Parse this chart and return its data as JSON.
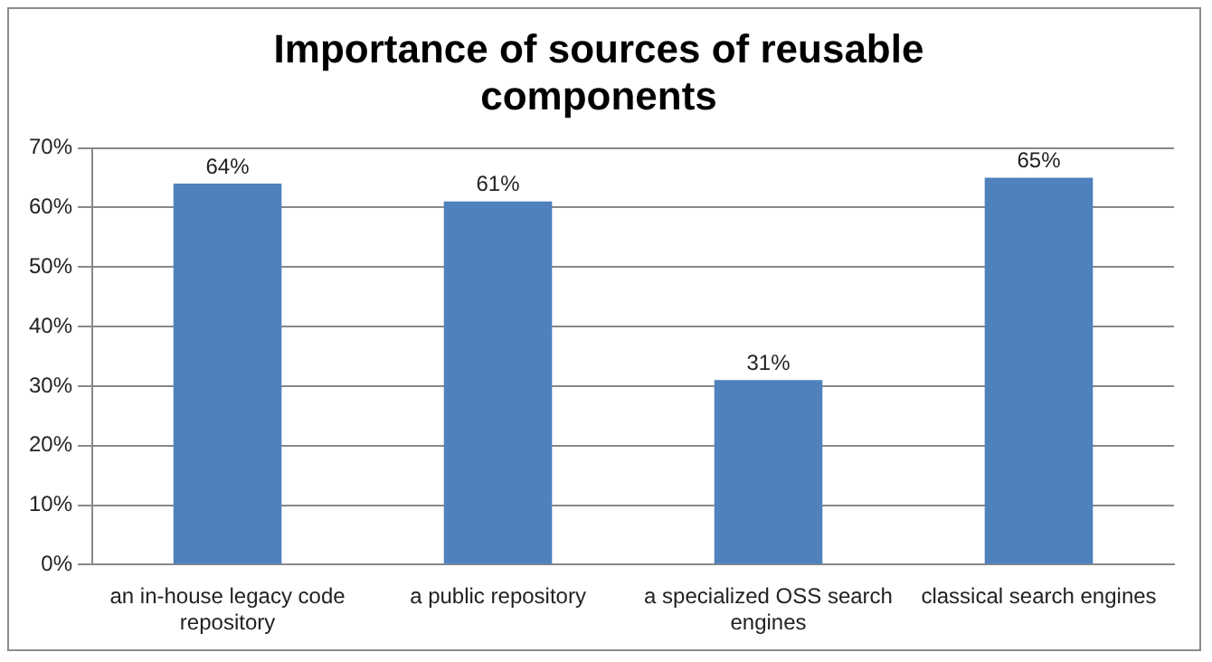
{
  "chart_data": {
    "type": "bar",
    "title": "Importance of sources of reusable components",
    "categories": [
      "an in-house legacy code repository",
      "a public repository",
      "a specialized OSS search engines",
      "classical search engines"
    ],
    "values": [
      64,
      61,
      31,
      65
    ],
    "color": "#4f81bd",
    "value_labels": [
      "64%",
      "61%",
      "31%",
      "65%"
    ],
    "ylim": [
      0,
      70
    ],
    "yticks": [
      {
        "value": 0,
        "label": "0%"
      },
      {
        "value": 10,
        "label": "10%"
      },
      {
        "value": 20,
        "label": "20%"
      },
      {
        "value": 30,
        "label": "30%"
      },
      {
        "value": 40,
        "label": "40%"
      },
      {
        "value": 50,
        "label": "50%"
      },
      {
        "value": 60,
        "label": "60%"
      },
      {
        "value": 70,
        "label": "70%"
      }
    ],
    "grid": "y",
    "legend": false
  }
}
